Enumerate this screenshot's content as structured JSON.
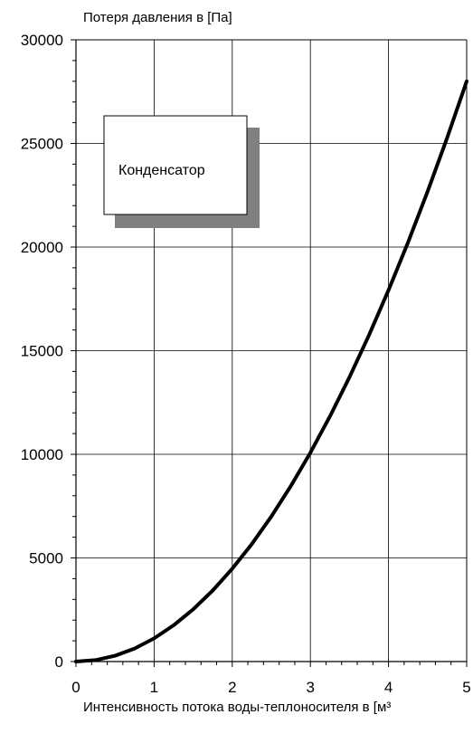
{
  "chart_data": {
    "type": "line",
    "title": "",
    "ylabel": "Потеря давления в [Па]",
    "xlabel": "Интенсивность потока воды-теплоносителя в [м³",
    "xlim": [
      0,
      5
    ],
    "ylim": [
      0,
      30000
    ],
    "x_ticks": [
      "0",
      "1",
      "2",
      "3",
      "4",
      "5"
    ],
    "y_ticks": [
      "0",
      "5000",
      "10000",
      "15000",
      "20000",
      "25000",
      "30000"
    ],
    "grid": true,
    "series": [
      {
        "x": [
          0,
          0.25,
          0.5,
          0.75,
          1.0,
          1.25,
          1.5,
          1.75,
          2.0,
          2.25,
          2.5,
          2.75,
          3.0,
          3.25,
          3.5,
          3.75,
          4.0,
          4.25,
          4.5,
          4.75,
          5.0
        ],
        "y": [
          0,
          70,
          280,
          630,
          1120,
          1750,
          2520,
          3430,
          4480,
          5670,
          7000,
          8470,
          10080,
          11830,
          13720,
          15750,
          17920,
          20230,
          22680,
          25270,
          28000
        ]
      }
    ],
    "annotation": "Конденсатор",
    "colors": {
      "line": "#000000",
      "grid": "#000000",
      "box_shadow": "#808080",
      "box_fill": "#ffffff"
    }
  }
}
